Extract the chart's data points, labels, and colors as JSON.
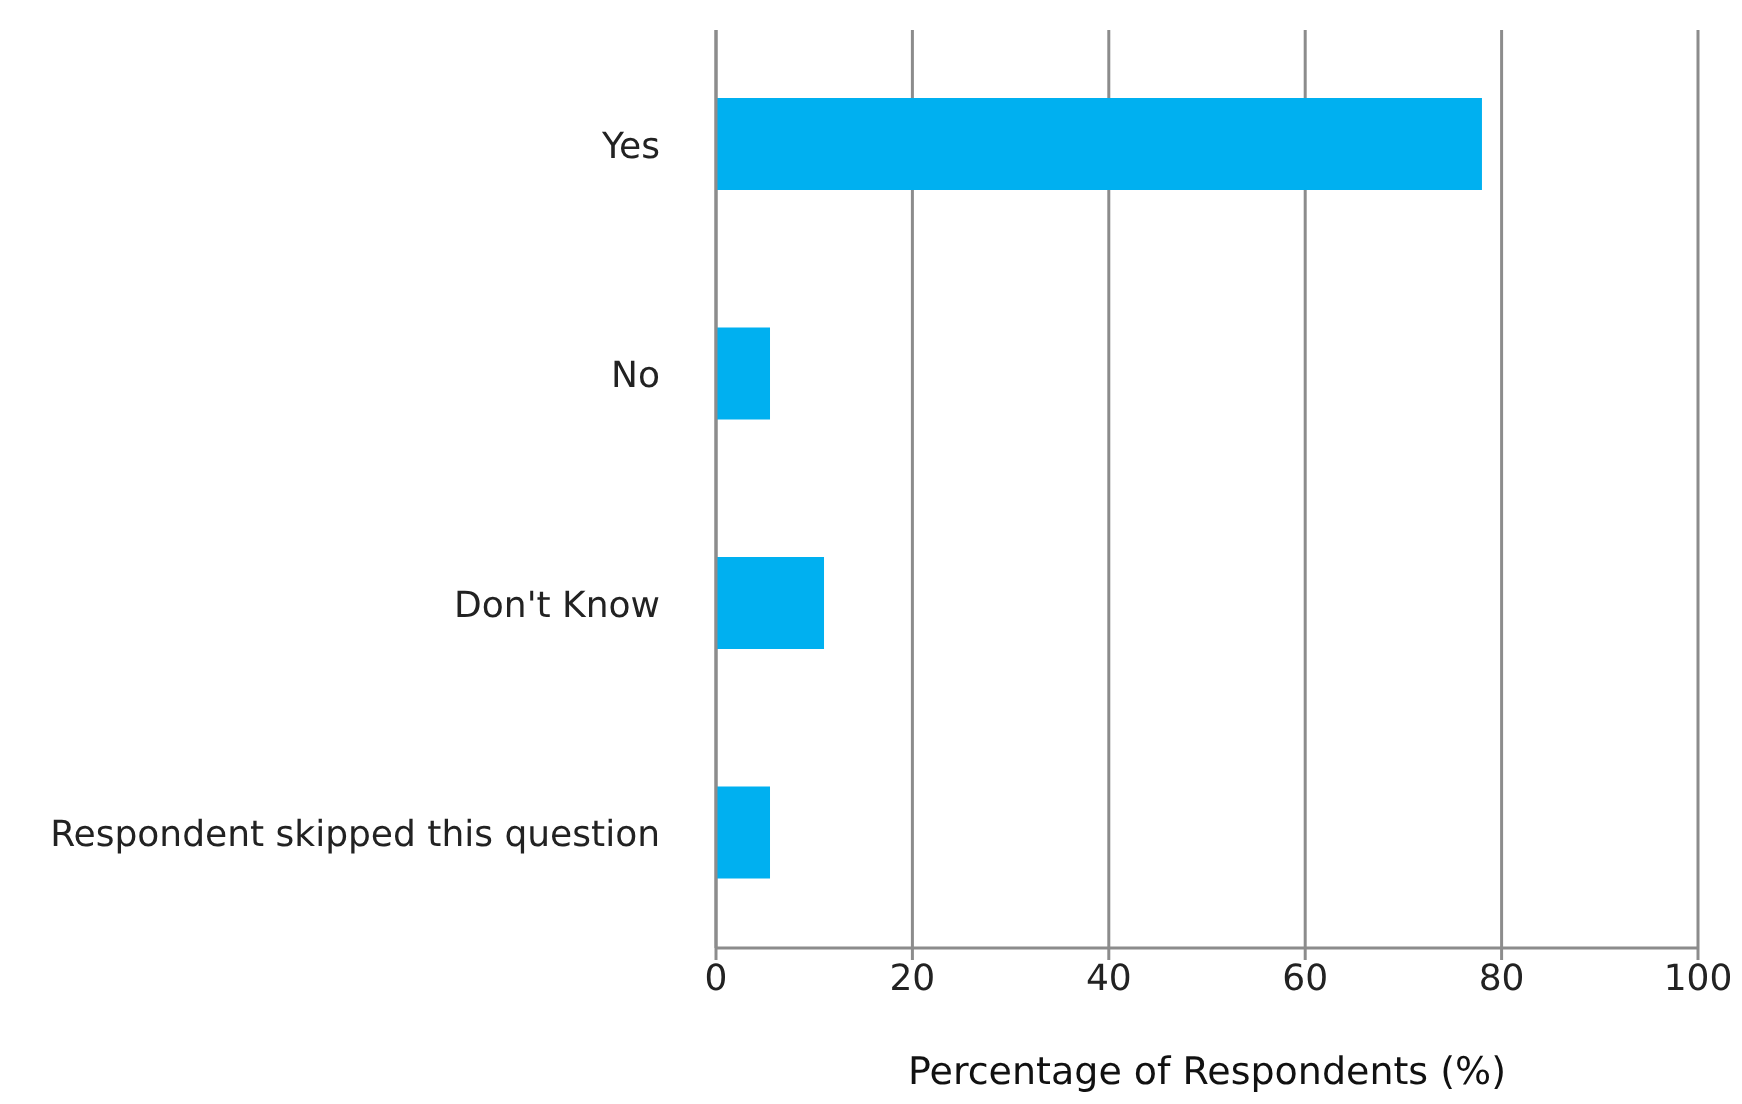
{
  "chart_data": {
    "type": "bar",
    "orientation": "horizontal",
    "xlabel": "Percentage of Respondents (%)",
    "categories": [
      "Yes",
      "No",
      "Don't Know",
      "Respondent skipped this question"
    ],
    "values": [
      78,
      5.5,
      11,
      5.5
    ],
    "color": "#00b0f0",
    "xlim": [
      0,
      100
    ],
    "xticks": [
      0,
      20,
      40,
      60,
      80,
      100
    ],
    "grid": "x"
  }
}
